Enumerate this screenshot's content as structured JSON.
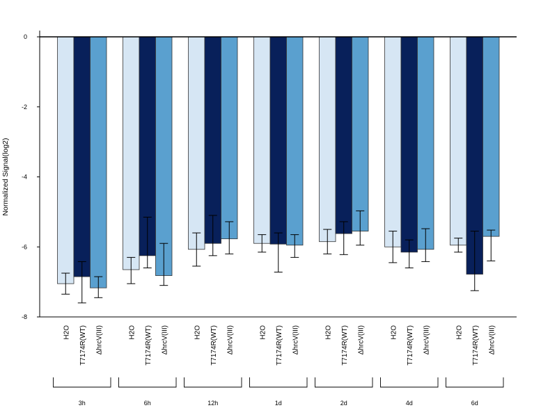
{
  "chart_data": {
    "type": "bar",
    "title": "",
    "xlabel": "",
    "ylabel": "Normalized Signal(log2)",
    "ylim": [
      -8,
      0
    ],
    "yticks": [
      0,
      -2,
      -4,
      -6,
      -8
    ],
    "ytick_labels": [
      "0",
      "-2",
      "-4",
      "-6",
      "-8"
    ],
    "grid": false,
    "legend": "none",
    "groups": [
      "3h",
      "6h",
      "12h",
      "1d",
      "2d",
      "4d",
      "6d"
    ],
    "series": [
      {
        "label": "H2O",
        "color": "#d6e6f4",
        "values": [
          -7.05,
          -6.65,
          -6.07,
          -5.9,
          -5.85,
          -6.0,
          -5.95
        ],
        "error_low": [
          -7.35,
          -7.05,
          -6.55,
          -6.15,
          -6.2,
          -6.45,
          -6.15
        ],
        "error_high": [
          -6.75,
          -6.3,
          -5.6,
          -5.65,
          -5.5,
          -5.55,
          -5.75
        ]
      },
      {
        "label": "T7174R(WT)",
        "color": "#08205a",
        "values": [
          -6.85,
          -6.25,
          -5.9,
          -5.92,
          -5.62,
          -6.15,
          -6.78
        ],
        "error_low": [
          -7.6,
          -6.6,
          -6.25,
          -6.72,
          -6.22,
          -6.6,
          -7.25
        ],
        "error_high": [
          -6.42,
          -5.15,
          -5.1,
          -5.6,
          -5.28,
          -5.8,
          -5.55
        ]
      },
      {
        "label": "ΔhrcV(III)",
        "color": "#5aa0cf",
        "values": [
          -7.17,
          -6.82,
          -5.77,
          -5.95,
          -5.55,
          -6.07,
          -5.7
        ],
        "error_low": [
          -7.45,
          -7.1,
          -6.2,
          -6.3,
          -5.95,
          -6.42,
          -6.4
        ],
        "error_high": [
          -6.85,
          -5.9,
          -5.28,
          -5.65,
          -4.97,
          -5.48,
          -5.52
        ]
      }
    ]
  }
}
